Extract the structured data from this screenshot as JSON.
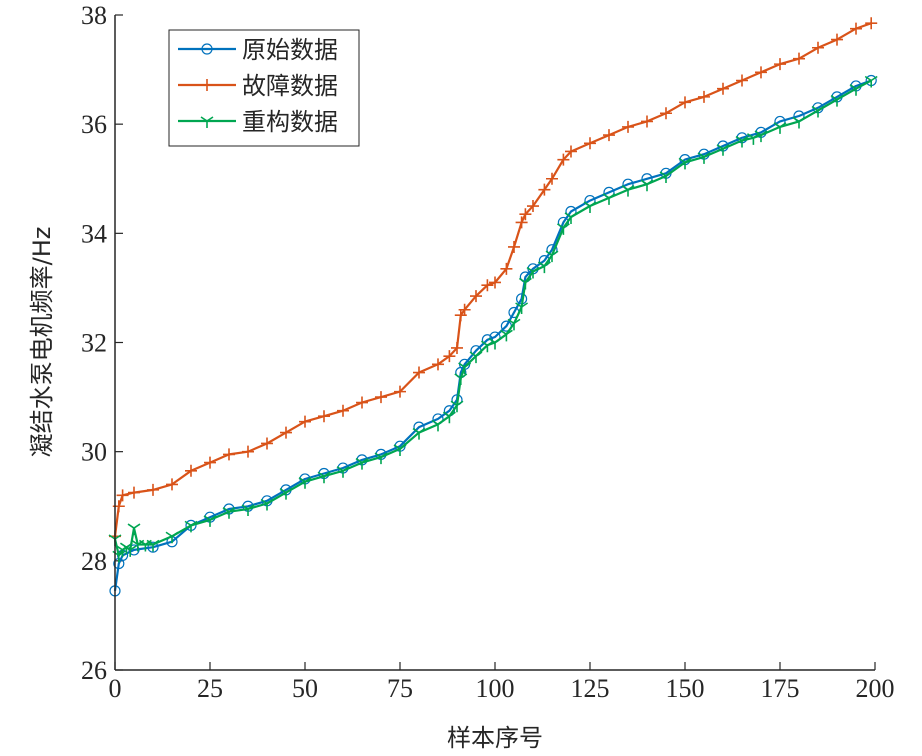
{
  "chart_data": {
    "type": "line",
    "xlabel": "样本序号",
    "ylabel": "凝结水泵电机频率/Hz",
    "xlim": [
      0,
      200
    ],
    "ylim": [
      26,
      38
    ],
    "xticks": [
      0,
      25,
      50,
      75,
      100,
      125,
      150,
      175,
      200
    ],
    "yticks": [
      26,
      28,
      30,
      32,
      34,
      36,
      38
    ],
    "grid": false,
    "legend_position": "top-left",
    "series": [
      {
        "name": "原始数据",
        "color": "#0072BD",
        "marker": "circle",
        "x": [
          0,
          1,
          2,
          5,
          10,
          15,
          20,
          25,
          30,
          35,
          40,
          45,
          50,
          55,
          60,
          65,
          70,
          75,
          80,
          85,
          88,
          90,
          91,
          92,
          95,
          98,
          100,
          103,
          105,
          107,
          108,
          110,
          113,
          115,
          118,
          120,
          125,
          130,
          135,
          140,
          145,
          150,
          155,
          160,
          165,
          170,
          175,
          180,
          185,
          190,
          195,
          199
        ],
        "values": [
          27.45,
          27.95,
          28.1,
          28.2,
          28.25,
          28.35,
          28.65,
          28.8,
          28.95,
          29.0,
          29.1,
          29.3,
          29.5,
          29.6,
          29.7,
          29.85,
          29.95,
          30.1,
          30.45,
          30.6,
          30.75,
          30.95,
          31.45,
          31.6,
          31.85,
          32.05,
          32.1,
          32.3,
          32.55,
          32.8,
          33.2,
          33.35,
          33.5,
          33.7,
          34.2,
          34.4,
          34.6,
          34.75,
          34.9,
          35.0,
          35.1,
          35.35,
          35.45,
          35.6,
          35.75,
          35.85,
          36.05,
          36.15,
          36.3,
          36.5,
          36.7,
          36.8
        ]
      },
      {
        "name": "故障数据",
        "color": "#D95319",
        "marker": "plus",
        "x": [
          0,
          1,
          2,
          5,
          10,
          15,
          20,
          25,
          30,
          35,
          40,
          45,
          50,
          55,
          60,
          65,
          70,
          75,
          80,
          85,
          88,
          90,
          91,
          92,
          95,
          98,
          100,
          103,
          105,
          107,
          108,
          110,
          113,
          115,
          118,
          120,
          125,
          130,
          135,
          140,
          145,
          150,
          155,
          160,
          165,
          170,
          175,
          180,
          185,
          190,
          195,
          199
        ],
        "values": [
          28.45,
          29.0,
          29.2,
          29.25,
          29.3,
          29.4,
          29.65,
          29.8,
          29.95,
          30.0,
          30.15,
          30.35,
          30.55,
          30.65,
          30.75,
          30.9,
          31.0,
          31.1,
          31.45,
          31.6,
          31.75,
          31.9,
          32.5,
          32.6,
          32.85,
          33.05,
          33.1,
          33.35,
          33.75,
          34.2,
          34.35,
          34.5,
          34.8,
          35.0,
          35.35,
          35.5,
          35.65,
          35.8,
          35.95,
          36.05,
          36.2,
          36.4,
          36.5,
          36.65,
          36.8,
          36.95,
          37.1,
          37.2,
          37.4,
          37.55,
          37.75,
          37.85
        ]
      },
      {
        "name": "重构数据",
        "color": "#00A651",
        "marker": "tri_down",
        "x": [
          0,
          1,
          2,
          3,
          4,
          5,
          6,
          8,
          10,
          15,
          20,
          25,
          30,
          35,
          40,
          45,
          50,
          55,
          60,
          65,
          70,
          75,
          80,
          85,
          88,
          90,
          91,
          92,
          95,
          98,
          100,
          103,
          105,
          107,
          108,
          110,
          113,
          115,
          118,
          120,
          125,
          130,
          135,
          140,
          145,
          150,
          155,
          160,
          165,
          168,
          170,
          175,
          180,
          185,
          190,
          195,
          199
        ],
        "values": [
          28.4,
          28.1,
          28.2,
          28.25,
          28.2,
          28.6,
          28.3,
          28.3,
          28.3,
          28.45,
          28.65,
          28.75,
          28.9,
          28.95,
          29.05,
          29.25,
          29.45,
          29.55,
          29.65,
          29.8,
          29.9,
          30.05,
          30.35,
          30.5,
          30.65,
          30.85,
          31.35,
          31.55,
          31.75,
          31.95,
          32.0,
          32.15,
          32.35,
          32.65,
          33.1,
          33.3,
          33.4,
          33.6,
          34.1,
          34.3,
          34.5,
          34.65,
          34.8,
          34.9,
          35.05,
          35.3,
          35.4,
          35.55,
          35.7,
          35.75,
          35.8,
          35.95,
          36.05,
          36.25,
          36.45,
          36.65,
          36.8
        ]
      }
    ]
  }
}
